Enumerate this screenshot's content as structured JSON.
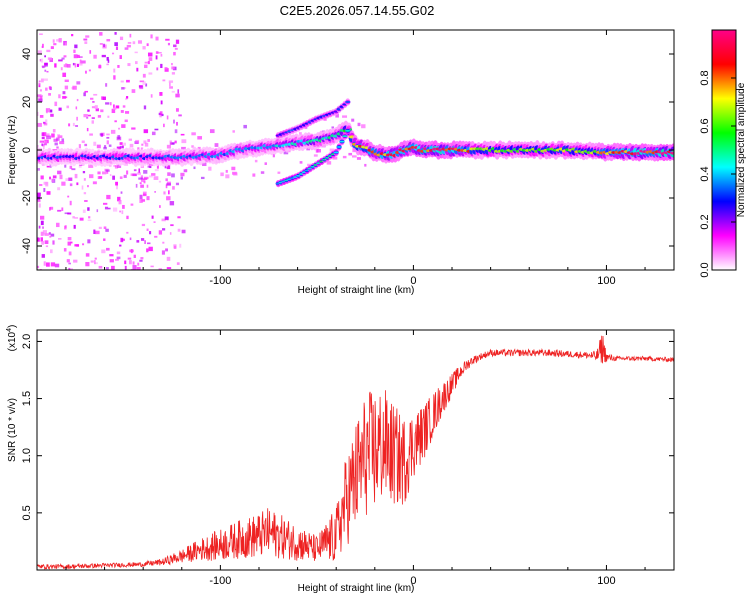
{
  "chart_data": [
    {
      "type": "heatmap",
      "title": "C2E5.2026.057.14.55.G02",
      "xlabel": "Height of straight line (km)",
      "ylabel": "Frequency (Hz)",
      "xlim": [
        -195,
        135
      ],
      "ylim": [
        -50,
        50
      ],
      "xticks": [
        -100,
        0,
        100
      ],
      "xtick_labels": [
        "-100",
        "0",
        "100"
      ],
      "yticks": [
        -40,
        -20,
        0,
        20,
        40
      ],
      "ytick_labels": [
        "-40",
        "-20",
        "0",
        "20",
        "40"
      ],
      "colorbar": {
        "label": "Normalized spectral amplitude",
        "range": [
          0,
          1
        ],
        "ticks": [
          0.0,
          0.2,
          0.4,
          0.6,
          0.8
        ],
        "tick_labels": [
          "0.0",
          "0.2",
          "0.4",
          "0.6",
          "0.8"
        ],
        "colors": [
          "#ffffff",
          "#ff00ff",
          "#0000ff",
          "#00ffff",
          "#00ff00",
          "#ffff00",
          "#ff0000",
          "#ff0088"
        ]
      },
      "ridge_x": [
        -195,
        -170,
        -140,
        -120,
        -100,
        -90,
        -80,
        -70,
        -60,
        -50,
        -40,
        -34,
        -30,
        -25,
        -20,
        -15,
        -10,
        -5,
        0,
        5,
        10,
        20,
        40,
        60,
        80,
        100,
        120,
        135
      ],
      "ridge_y": [
        -3,
        -3,
        -3,
        -3,
        -2,
        0,
        1,
        2,
        3,
        4,
        6,
        9,
        2,
        1,
        -1,
        -2,
        -2,
        0,
        1,
        0,
        0,
        0,
        0,
        0,
        0,
        -1,
        -1,
        -1
      ],
      "ridge_amplitude": [
        0.3,
        0.3,
        0.32,
        0.33,
        0.35,
        0.38,
        0.4,
        0.42,
        0.45,
        0.45,
        0.48,
        0.55,
        0.72,
        0.78,
        0.8,
        0.8,
        0.85,
        0.85,
        0.9,
        0.9,
        0.9,
        0.92,
        0.6,
        0.6,
        0.62,
        0.72,
        0.9,
        0.95
      ],
      "secondary_branch_x": [
        -70,
        -60,
        -50,
        -40,
        -34
      ],
      "secondary_branch_y": [
        -14,
        -11,
        -6,
        -1,
        8
      ],
      "upper_branch_x": [
        -70,
        -60,
        -50,
        -40,
        -34
      ],
      "upper_branch_y": [
        6,
        9,
        13,
        16,
        20
      ]
    },
    {
      "type": "line",
      "xlabel": "Height of straight line (km)",
      "ylabel": "SNR (10 * v/v)",
      "y_multiplier_label": "(x10",
      "y_multiplier_exponent": "4",
      "xlim": [
        -195,
        135
      ],
      "ylim": [
        0,
        2.1
      ],
      "xticks": [
        -100,
        0,
        100
      ],
      "xtick_labels": [
        "-100",
        "0",
        "100"
      ],
      "yticks": [
        0.5,
        1.0,
        1.5,
        2.0
      ],
      "ytick_labels": [
        "0.5",
        "1.0",
        "1.5",
        "2.0"
      ],
      "color": "#ee2222",
      "x": [
        -195,
        -180,
        -160,
        -140,
        -130,
        -120,
        -110,
        -100,
        -90,
        -80,
        -75,
        -70,
        -60,
        -50,
        -40,
        -35,
        -30,
        -25,
        -20,
        -15,
        -10,
        -5,
        0,
        5,
        10,
        15,
        20,
        25,
        30,
        35,
        40,
        50,
        60,
        70,
        80,
        90,
        95,
        98,
        100,
        105,
        110,
        120,
        135
      ],
      "y": [
        0.03,
        0.03,
        0.04,
        0.05,
        0.07,
        0.12,
        0.18,
        0.22,
        0.27,
        0.3,
        0.33,
        0.3,
        0.24,
        0.18,
        0.3,
        0.6,
        0.8,
        1.0,
        1.05,
        1.1,
        1.0,
        0.95,
        1.1,
        1.2,
        1.35,
        1.5,
        1.62,
        1.75,
        1.83,
        1.87,
        1.9,
        1.9,
        1.9,
        1.9,
        1.89,
        1.88,
        1.87,
        1.95,
        1.86,
        1.85,
        1.85,
        1.85,
        1.84
      ],
      "noise_amplitude": [
        0.02,
        0.02,
        0.02,
        0.02,
        0.03,
        0.06,
        0.1,
        0.14,
        0.17,
        0.2,
        0.22,
        0.2,
        0.16,
        0.12,
        0.25,
        0.4,
        0.5,
        0.55,
        0.55,
        0.5,
        0.45,
        0.4,
        0.3,
        0.25,
        0.2,
        0.15,
        0.1,
        0.06,
        0.04,
        0.03,
        0.03,
        0.03,
        0.03,
        0.03,
        0.03,
        0.03,
        0.05,
        0.15,
        0.04,
        0.02,
        0.02,
        0.02,
        0.02
      ]
    }
  ]
}
